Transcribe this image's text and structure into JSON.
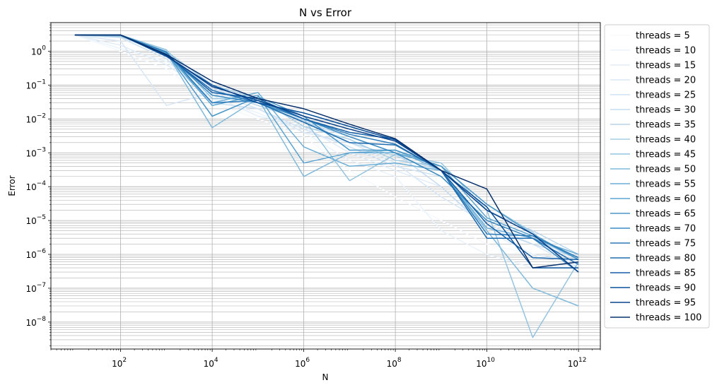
{
  "chart_data": {
    "type": "line",
    "title": "N vs Error",
    "xlabel": "N",
    "ylabel": "Error",
    "xscale": "log",
    "yscale": "log",
    "xlim": [
      3.0,
      3000000000000.0
    ],
    "ylim": [
      1.6e-09,
      7.0
    ],
    "grid": "on (major and minor)",
    "legend_position": "outside right",
    "colormap": "Blues",
    "xticks": [
      {
        "value": 100,
        "base": "10",
        "exp": "2"
      },
      {
        "value": 10000,
        "base": "10",
        "exp": "4"
      },
      {
        "value": 1000000,
        "base": "10",
        "exp": "6"
      },
      {
        "value": 100000000,
        "base": "10",
        "exp": "8"
      },
      {
        "value": 10000000000,
        "base": "10",
        "exp": "10"
      },
      {
        "value": 1000000000000,
        "base": "10",
        "exp": "12"
      }
    ],
    "yticks": [
      {
        "value": 1e-08,
        "base": "10",
        "exp": "−8"
      },
      {
        "value": 1e-07,
        "base": "10",
        "exp": "−7"
      },
      {
        "value": 1e-06,
        "base": "10",
        "exp": "−6"
      },
      {
        "value": 1e-05,
        "base": "10",
        "exp": "−5"
      },
      {
        "value": 0.0001,
        "base": "10",
        "exp": "−4"
      },
      {
        "value": 0.001,
        "base": "10",
        "exp": "−3"
      },
      {
        "value": 0.01,
        "base": "10",
        "exp": "−2"
      },
      {
        "value": 0.1,
        "base": "10",
        "exp": "−1"
      },
      {
        "value": 1,
        "base": "10",
        "exp": "0"
      }
    ],
    "x": [
      10,
      100,
      1000,
      10000,
      100000,
      1000000,
      10000000,
      100000000,
      1000000000,
      10000000000,
      100000000000,
      1000000000000
    ],
    "series": [
      {
        "name": "threads = 5",
        "color": "#f5f9fe",
        "values": [
          3.0,
          1.0,
          0.3,
          0.03,
          0.01,
          0.003,
          0.0003,
          5e-05,
          1e-05,
          2e-06,
          1e-06,
          5e-07
        ]
      },
      {
        "name": "threads = 10",
        "color": "#ebf3fb",
        "values": [
          3.0,
          1.2,
          0.5,
          0.04,
          0.015,
          0.004,
          0.0006,
          0.0002,
          5e-06,
          1e-06,
          4e-07,
          5e-07
        ]
      },
      {
        "name": "threads = 15",
        "color": "#e2edf8",
        "values": [
          3.0,
          1.5,
          0.4,
          0.05,
          0.012,
          0.006,
          0.001,
          0.0003,
          0.0001,
          5e-06,
          1e-06,
          6e-07
        ]
      },
      {
        "name": "threads = 20",
        "color": "#d9e7f5",
        "values": [
          3.0,
          2.0,
          0.025,
          0.06,
          0.02,
          0.004,
          0.002,
          0.0005,
          5e-05,
          8e-06,
          2e-06,
          4e-07
        ]
      },
      {
        "name": "threads = 25",
        "color": "#cfe1f2",
        "values": [
          3.0,
          2.5,
          0.6,
          0.03,
          0.02,
          0.005,
          0.0015,
          0.0004,
          0.0002,
          1e-05,
          3e-06,
          7e-07
        ]
      },
      {
        "name": "threads = 30",
        "color": "#c6dbef",
        "values": [
          3.0,
          2.8,
          0.9,
          0.08,
          0.03,
          0.008,
          0.003,
          0.001,
          0.0001,
          6e-06,
          2e-06,
          8e-07
        ]
      },
      {
        "name": "threads = 35",
        "color": "#b7d4ea",
        "values": [
          3.0,
          2.7,
          0.8,
          0.07,
          0.025,
          0.009,
          0.002,
          0.0008,
          0.0003,
          2e-05,
          5e-06,
          1e-06
        ]
      },
      {
        "name": "threads = 40",
        "color": "#a6cee4",
        "values": [
          3.0,
          2.9,
          1.0,
          0.1,
          0.04,
          0.006,
          0.0025,
          0.0006,
          0.0004,
          3e-05,
          4.5e-06,
          3e-07
        ]
      },
      {
        "name": "threads = 45",
        "color": "#94c4df",
        "values": [
          3.0,
          3.0,
          1.1,
          0.04,
          0.04,
          0.01,
          0.00015,
          0.0009,
          0.0005,
          2e-05,
          3.5e-09,
          6e-07
        ]
      },
      {
        "name": "threads = 50",
        "color": "#81badb",
        "values": [
          3.0,
          2.8,
          0.9,
          0.0055,
          0.04,
          0.0002,
          0.001,
          0.0012,
          0.0003,
          5e-06,
          1e-07,
          3e-08
        ]
      },
      {
        "name": "threads = 55",
        "color": "#6caed6",
        "values": [
          3.0,
          3.0,
          0.8,
          0.03,
          0.06,
          0.0015,
          0.0004,
          0.0005,
          0.0003,
          6e-06,
          3e-06,
          1e-06
        ]
      },
      {
        "name": "threads = 60",
        "color": "#5ba3d0",
        "values": [
          3.0,
          3.0,
          0.85,
          0.025,
          0.05,
          0.0005,
          0.001,
          0.001,
          0.0004,
          1.2e-05,
          3.5e-06,
          7e-07
        ]
      },
      {
        "name": "threads = 65",
        "color": "#4a98c9",
        "values": [
          3.0,
          3.0,
          0.9,
          0.012,
          0.045,
          0.012,
          0.0012,
          0.0012,
          0.0004,
          3e-05,
          4e-06,
          7e-07
        ]
      },
      {
        "name": "threads = 70",
        "color": "#3b8bc2",
        "values": [
          3.0,
          3.0,
          0.8,
          0.05,
          0.03,
          0.01,
          0.003,
          0.001,
          0.0002,
          1e-05,
          3e-06,
          3e-07
        ]
      },
      {
        "name": "threads = 75",
        "color": "#2c7cba",
        "values": [
          3.0,
          3.0,
          0.95,
          0.03,
          0.035,
          0.01,
          0.0035,
          0.0018,
          0.0003,
          4e-06,
          3.5e-06,
          8e-07
        ]
      },
      {
        "name": "threads = 80",
        "color": "#1f6db1",
        "values": [
          3.0,
          3.0,
          0.75,
          0.07,
          0.03,
          0.008,
          0.002,
          0.0017,
          0.0003,
          3e-06,
          3e-06,
          5e-07
        ]
      },
      {
        "name": "threads = 85",
        "color": "#135fa7",
        "values": [
          3.0,
          3.0,
          0.8,
          0.06,
          0.04,
          0.01,
          0.004,
          0.0025,
          0.0003,
          8e-06,
          8e-07,
          7e-07
        ]
      },
      {
        "name": "threads = 90",
        "color": "#08509b",
        "values": [
          3.0,
          3.0,
          0.7,
          0.1,
          0.03,
          0.015,
          0.006,
          0.0024,
          0.0003,
          2.5e-05,
          4e-07,
          4e-07
        ]
      },
      {
        "name": "threads = 95",
        "color": "#08418a",
        "values": [
          3.0,
          3.0,
          0.75,
          0.09,
          0.035,
          0.012,
          0.005,
          0.0022,
          0.0003,
          2e-05,
          4e-06,
          3e-07
        ]
      },
      {
        "name": "threads = 100",
        "color": "#08306b",
        "values": [
          3.0,
          3.0,
          0.8,
          0.13,
          0.04,
          0.02,
          0.007,
          0.0026,
          0.0003,
          8.5e-05,
          4e-07,
          6e-07
        ]
      }
    ]
  }
}
